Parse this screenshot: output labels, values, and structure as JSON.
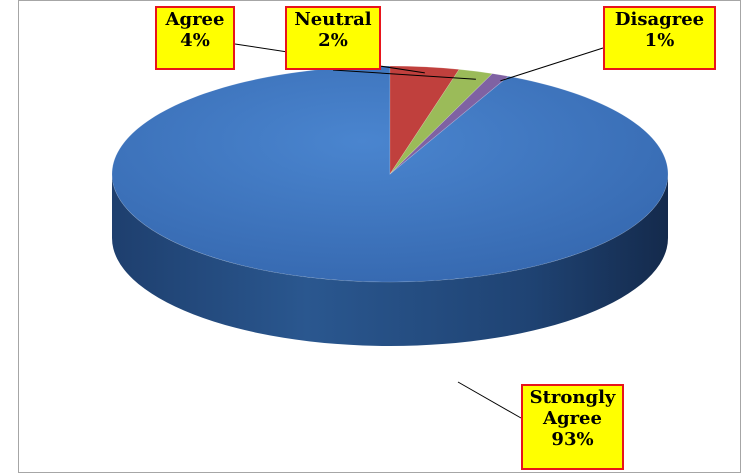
{
  "chart_data": {
    "type": "pie",
    "style": "3d",
    "categories": [
      "Strongly Agree",
      "Agree",
      "Neutral",
      "Disagree"
    ],
    "values": [
      93,
      4,
      2,
      1
    ],
    "value_labels": [
      "93%",
      "4%",
      "2%",
      "1%"
    ],
    "colors": [
      "#3c73bd",
      "#c0403d",
      "#9bbb59",
      "#7f62a3"
    ],
    "label_lines": {
      "strongly_agree": [
        "Strongly",
        "Agree",
        "93%"
      ],
      "agree": [
        "Agree",
        "4%"
      ],
      "neutral": [
        "Neutral",
        "2%"
      ],
      "disagree": [
        "Disagree",
        "1%"
      ]
    },
    "legend": "none",
    "label_style": {
      "fill": "#ffff00",
      "border": "#e8141b"
    }
  }
}
